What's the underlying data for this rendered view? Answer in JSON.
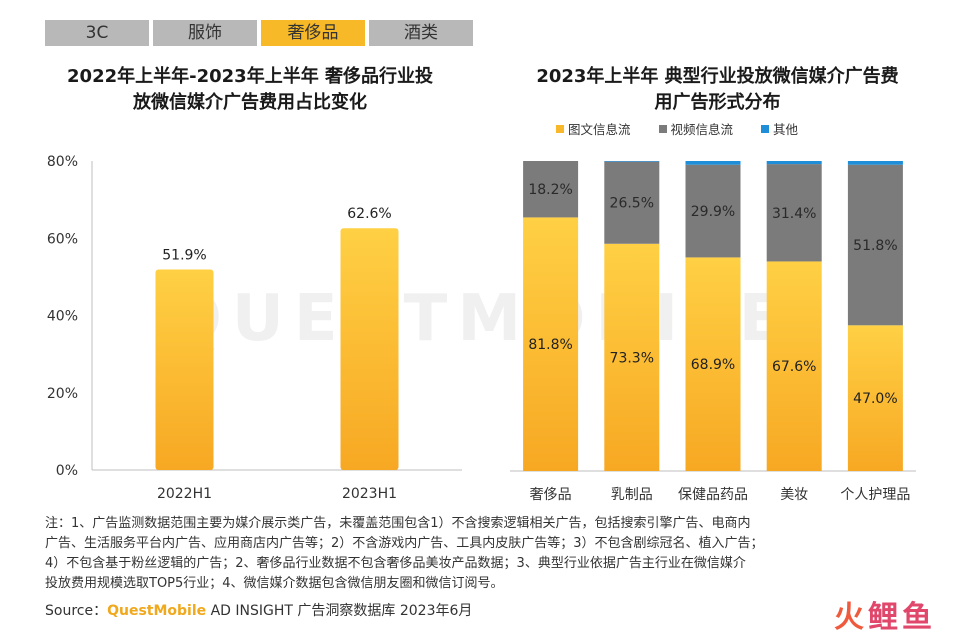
{
  "tabs": [
    "3C",
    "服饰",
    "奢侈品",
    "酒类"
  ],
  "active_tab": 2,
  "left_title_1": "2022年上半年-2023年上半年 奢侈品行业投",
  "left_title_2": "放微信媒介广告费用占比变化",
  "right_title_1": "2023年上半年 典型行业投放微信媒介广告费",
  "right_title_2": "用广告形式分布",
  "watermark": "QUESTMOBILE",
  "colors": {
    "gold": "#f9b72a",
    "gold_light": "#ffd044",
    "gray": "#7b7b7b",
    "blue": "#1f8ed9",
    "tab": "#b8b8b8",
    "tab_active": "#f7b928"
  },
  "chart_data": [
    {
      "type": "bar",
      "title": "2022年上半年-2023年上半年 奢侈品行业投放微信媒介广告费用占比变化",
      "categories": [
        "2022H1",
        "2023H1"
      ],
      "values": [
        51.9,
        62.6
      ],
      "value_labels": [
        "51.9%",
        "62.6%"
      ],
      "ylim": [
        0,
        80
      ],
      "yticks": [
        "0%",
        "20%",
        "40%",
        "60%",
        "80%"
      ],
      "ytick_values": [
        0,
        20,
        40,
        60,
        80
      ],
      "grid": false
    },
    {
      "type": "bar",
      "stacked": true,
      "title": "2023年上半年 典型行业投放微信媒介广告费用广告形式分布",
      "categories": [
        "奢侈品",
        "乳制品",
        "保健品药品",
        "美妆",
        "个人护理品"
      ],
      "series": [
        {
          "name": "图文信息流",
          "values": [
            81.8,
            73.3,
            68.9,
            67.6,
            47.0
          ],
          "labels": [
            "81.8%",
            "73.3%",
            "68.9%",
            "67.6%",
            "47.0%"
          ],
          "color": "#f9b72a"
        },
        {
          "name": "视频信息流",
          "values": [
            18.2,
            26.5,
            29.9,
            31.4,
            51.8
          ],
          "labels": [
            "18.2%",
            "26.5%",
            "29.9%",
            "31.4%",
            "51.8%"
          ],
          "color": "#7b7b7b"
        },
        {
          "name": "其他",
          "values": [
            0.0,
            0.2,
            1.2,
            1.0,
            1.2
          ],
          "color": "#1f8ed9"
        }
      ],
      "ylim": [
        0,
        100
      ],
      "legend": "top"
    }
  ],
  "note_lines": [
    "注：1、广告监测数据范围主要为媒介展示类广告，未覆盖范围包含1）不含搜索逻辑相关广告，包括搜索引擎广告、电商内",
    "广告、生活服务平台内广告、应用商店内广告等；2）不含游戏内广告、工具内皮肤广告等；3）不包含剧综冠名、植入广告；",
    "4）不包含基于粉丝逻辑的广告；2、奢侈品行业数据不包含奢侈品美妆产品数据；3、典型行业依据广告主行业在微信媒介",
    "投放费用规模选取TOP5行业；4、微信媒介数据包含微信朋友圈和微信订阅号。"
  ],
  "source_prefix": "Source：",
  "source_brand": "QuestMobile",
  "source_rest": " AD INSIGHT 广告洞察数据库 2023年6月",
  "logo_a": "火",
  "logo_b": "鲤鱼"
}
